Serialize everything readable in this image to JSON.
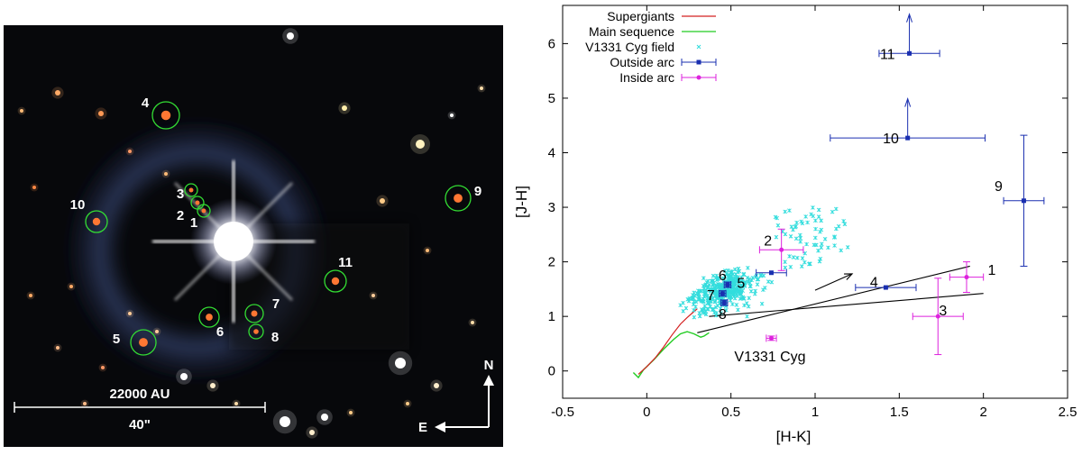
{
  "image": {
    "labels": [
      "1",
      "2",
      "3",
      "4",
      "5",
      "6",
      "7",
      "8",
      "9",
      "10",
      "11"
    ],
    "scale_bar_top": "22000 AU",
    "scale_bar_bottom": "40\"",
    "compass_north": "N",
    "compass_east": "E"
  },
  "chart_data": {
    "type": "scatter",
    "xlabel": "[H-K]",
    "ylabel": "[J-H]",
    "xlim": [
      -0.5,
      2.5
    ],
    "ylim": [
      -0.5,
      6.7
    ],
    "xticks": [
      "-0.5",
      "0",
      "0.5",
      "1",
      "1.5",
      "2",
      "2.5"
    ],
    "xtick_values": [
      -0.5,
      0,
      0.5,
      1,
      1.5,
      2,
      2.5
    ],
    "yticks": [
      "0",
      "1",
      "2",
      "3",
      "4",
      "5",
      "6"
    ],
    "ytick_values": [
      0,
      1,
      2,
      3,
      4,
      5,
      6
    ],
    "annotation": "V1331 Cyg",
    "colors": {
      "supergiants": "#d42020",
      "main_sequence": "#22cc22",
      "field": "#33dddd",
      "outside": "#1a2fb0",
      "inside": "#dd22dd",
      "reddening": "#000000"
    },
    "legend": [
      {
        "label": "Supergiants",
        "key": "supergiants"
      },
      {
        "label": "Main sequence",
        "key": "main_sequence"
      },
      {
        "label": "V1331 Cyg field",
        "key": "field"
      },
      {
        "label": "Outside arc",
        "key": "outside"
      },
      {
        "label": "Inside arc",
        "key": "inside"
      }
    ],
    "supergiants": [
      [
        -0.05,
        -0.06
      ],
      [
        0,
        0.08
      ],
      [
        0.05,
        0.24
      ],
      [
        0.1,
        0.44
      ],
      [
        0.15,
        0.66
      ],
      [
        0.2,
        0.86
      ],
      [
        0.24,
        0.98
      ],
      [
        0.27,
        1.06
      ],
      [
        0.3,
        1.14
      ]
    ],
    "main_sequence": [
      [
        -0.08,
        -0.03
      ],
      [
        -0.05,
        -0.12
      ],
      [
        -0.02,
        0.02
      ],
      [
        0.04,
        0.2
      ],
      [
        0.1,
        0.4
      ],
      [
        0.16,
        0.58
      ],
      [
        0.2,
        0.68
      ],
      [
        0.24,
        0.72
      ],
      [
        0.28,
        0.68
      ],
      [
        0.32,
        0.62
      ],
      [
        0.34,
        0.64
      ],
      [
        0.37,
        0.7
      ]
    ],
    "reddening_lines": [
      [
        [
          0.3,
          0.7
        ],
        [
          1.92,
          1.92
        ]
      ],
      [
        [
          0.37,
          1.0
        ],
        [
          2.0,
          1.42
        ]
      ]
    ],
    "reddening_arrow": [
      [
        1.0,
        1.48
      ],
      [
        1.22,
        1.78
      ]
    ],
    "v1331_point": {
      "x": 0.74,
      "y": 0.6,
      "xerr": 0.03,
      "yerr": 0.04
    },
    "outside_arc": [
      {
        "label": "4",
        "x": 1.42,
        "y": 1.53,
        "xerr": 0.18,
        "yerr": 0,
        "upper": false
      },
      {
        "label": "5",
        "x": 0.74,
        "y": 1.8,
        "xerr": 0.09,
        "yerr": 0,
        "upper": false
      },
      {
        "label": "6",
        "x": 0.48,
        "y": 1.58,
        "xerr": 0.02,
        "yerr": 0.05,
        "upper": false
      },
      {
        "label": "7",
        "x": 0.45,
        "y": 1.42,
        "xerr": 0.02,
        "yerr": 0.05,
        "upper": false
      },
      {
        "label": "8",
        "x": 0.46,
        "y": 1.25,
        "xerr": 0.02,
        "yerr": 0.05,
        "upper": false
      },
      {
        "label": "9",
        "x": 2.24,
        "y": 3.12,
        "xerr": 0.12,
        "yerr": 1.2,
        "upper": false
      },
      {
        "label": "10",
        "x": 1.55,
        "y": 4.27,
        "xerr": 0.46,
        "yerr": 0,
        "upper": true
      },
      {
        "label": "11",
        "x": 1.56,
        "y": 5.82,
        "xerr": 0.18,
        "yerr": 0,
        "upper": true
      }
    ],
    "inside_arc": [
      {
        "label": "1",
        "x": 1.9,
        "y": 1.72,
        "xerr": 0.1,
        "yerr": 0.28,
        "upper": false
      },
      {
        "label": "2",
        "x": 0.8,
        "y": 2.22,
        "xerr": 0.13,
        "yerr": 0.38,
        "upper": false
      },
      {
        "label": "3",
        "x": 1.73,
        "y": 1.0,
        "xerr": 0.15,
        "yerr": 0.7,
        "upper": false
      }
    ],
    "point_labels": [
      {
        "text": "1",
        "x": 2.05,
        "y": 1.86
      },
      {
        "text": "2",
        "x": 0.72,
        "y": 2.4
      },
      {
        "text": "3",
        "x": 1.76,
        "y": 1.12
      },
      {
        "text": "4",
        "x": 1.35,
        "y": 1.64
      },
      {
        "text": "5",
        "x": 0.56,
        "y": 1.62
      },
      {
        "text": "6",
        "x": 0.45,
        "y": 1.76
      },
      {
        "text": "7",
        "x": 0.38,
        "y": 1.4
      },
      {
        "text": "8",
        "x": 0.45,
        "y": 1.05
      },
      {
        "text": "9",
        "x": 2.09,
        "y": 3.4
      },
      {
        "text": "10",
        "x": 1.45,
        "y": 4.27
      },
      {
        "text": "11",
        "x": 1.43,
        "y": 5.82
      }
    ]
  }
}
